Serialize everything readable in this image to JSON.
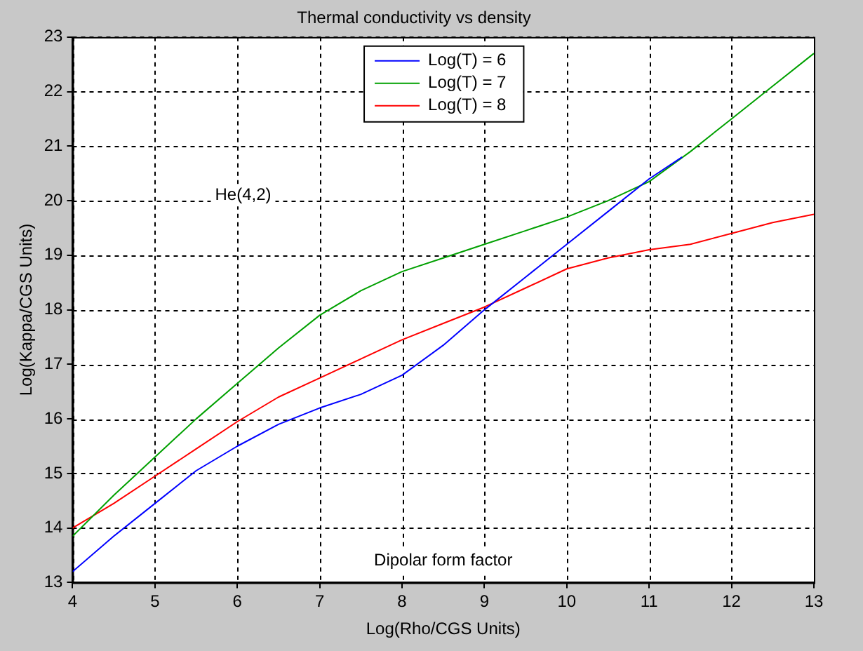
{
  "chart_data": {
    "type": "line",
    "title": "Thermal conductivity vs density",
    "xlabel": "Log(Rho/CGS Units)",
    "ylabel": "Log(Kappa/CGS Units)",
    "annotations": [
      "He(4,2)",
      "Dipolar form factor"
    ],
    "xlim": [
      4,
      13
    ],
    "xticks": [
      4,
      5,
      6,
      7,
      8,
      9,
      10,
      11,
      12,
      13
    ],
    "ylim": [
      13,
      23
    ],
    "yticks": [
      13,
      14,
      15,
      16,
      17,
      18,
      19,
      20,
      21,
      22,
      23
    ],
    "grid": true,
    "legend": "top",
    "line_style": "solid",
    "marker": "none",
    "series": [
      {
        "name": "Log(T) = 6",
        "color": "#0000ff",
        "x": [
          4,
          4.5,
          5,
          5.5,
          6,
          6.5,
          7,
          7.5,
          8,
          8.5,
          9,
          9.5,
          10,
          10.5,
          11,
          11.4
        ],
        "values": [
          13.2,
          13.85,
          14.45,
          15.05,
          15.5,
          15.9,
          16.2,
          16.45,
          16.8,
          17.35,
          18.0,
          18.6,
          19.2,
          19.8,
          20.4,
          20.8
        ]
      },
      {
        "name": "Log(T) = 7",
        "color": "#00a000",
        "x": [
          4,
          4.5,
          5,
          5.5,
          6,
          6.5,
          7,
          7.5,
          8,
          8.5,
          9,
          9.5,
          10,
          10.5,
          11,
          11.5,
          12,
          12.5,
          13
        ],
        "values": [
          13.85,
          14.6,
          15.3,
          16.0,
          16.65,
          17.3,
          17.9,
          18.35,
          18.7,
          18.95,
          19.2,
          19.45,
          19.7,
          20.0,
          20.35,
          20.9,
          21.5,
          22.1,
          22.7
        ]
      },
      {
        "name": "Log(T) = 8",
        "color": "#ff0000",
        "x": [
          4,
          4.5,
          5,
          5.5,
          6,
          6.5,
          7,
          7.5,
          8,
          8.5,
          9,
          9.5,
          10,
          10.5,
          11,
          11.5,
          12,
          12.5,
          13
        ],
        "values": [
          14.0,
          14.45,
          14.95,
          15.45,
          15.95,
          16.4,
          16.75,
          17.1,
          17.45,
          17.75,
          18.05,
          18.4,
          18.75,
          18.95,
          19.1,
          19.2,
          19.4,
          19.6,
          19.75
        ]
      }
    ]
  }
}
